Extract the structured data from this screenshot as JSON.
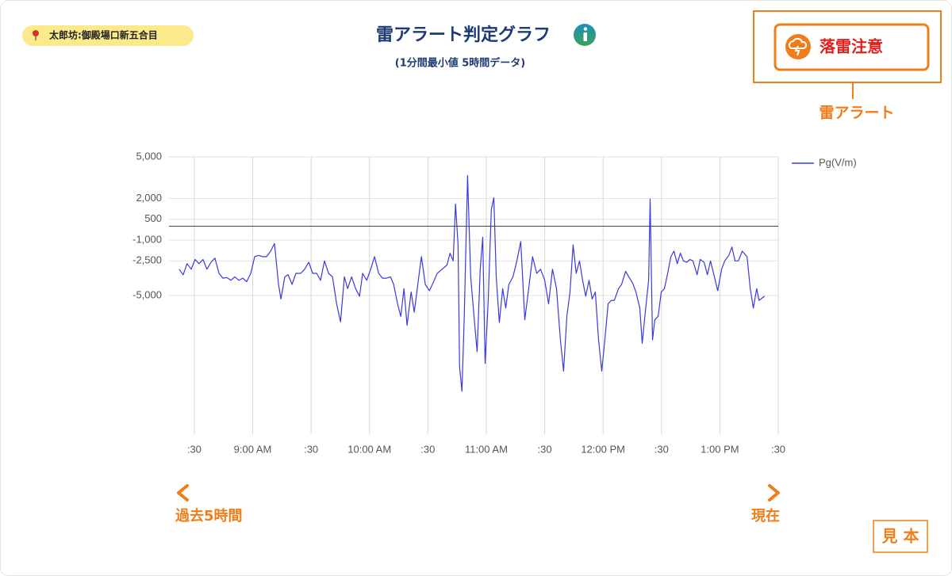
{
  "location": "太郎坊:御殿場口新五合目",
  "alert": {
    "status": "落雷注意",
    "label": "雷アラート"
  },
  "timeline": {
    "start": "過去5時間",
    "end": "現在"
  },
  "stamp": "見 本",
  "chart_data": {
    "type": "line",
    "title": "雷アラート判定グラフ",
    "subtitle": "(1分間最小値 5時間データ)",
    "x": [
      502.2,
      504.3,
      506.3,
      508.4,
      510.4,
      512.4,
      514.5,
      516.5,
      518.6,
      520.6,
      522.7,
      524.7,
      526.7,
      528.8,
      530.8,
      532.9,
      534.9,
      536.9,
      539.0,
      541.0,
      543.1,
      545.1,
      547.1,
      549.2,
      551.2,
      553.3,
      554.5,
      556.5,
      558.2,
      560.2,
      562.2,
      564.7,
      566.7,
      568.8,
      570.8,
      572.9,
      574.9,
      576.9,
      579.0,
      581.0,
      583.1,
      585.1,
      587.1,
      588.8,
      590.8,
      592.9,
      594.9,
      596.5,
      598.6,
      600.6,
      602.6,
      604.7,
      606.7,
      608.7,
      610.8,
      612.4,
      614.4,
      616.1,
      617.7,
      619.3,
      621.4,
      623.0,
      625.1,
      626.7,
      628.7,
      630.8,
      632.8,
      634.8,
      637.3,
      639.8,
      641.4,
      643.0,
      644.2,
      645.5,
      646.3,
      647.5,
      648.7,
      650.4,
      652.0,
      653.7,
      655.3,
      656.9,
      658.2,
      659.4,
      661.0,
      662.6,
      663.9,
      665.1,
      666.7,
      668.4,
      670.0,
      671.6,
      673.7,
      675.7,
      677.7,
      679.8,
      681.8,
      683.8,
      685.9,
      687.9,
      690.0,
      692.0,
      694.0,
      696.1,
      698.1,
      699.7,
      701.4,
      703.0,
      704.6,
      706.2,
      707.9,
      709.5,
      711.1,
      712.8,
      714.4,
      716.0,
      717.7,
      719.3,
      720.9,
      722.6,
      724.2,
      725.8,
      727.9,
      729.5,
      731.6,
      733.2,
      735.2,
      736.9,
      738.9,
      740.1,
      741.7,
      743.4,
      744.2,
      745.4,
      746.6,
      748.3,
      749.9,
      751.5,
      753.2,
      754.8,
      756.4,
      758.1,
      759.7,
      761.3,
      763.0,
      764.6,
      766.2,
      768.3,
      769.9,
      771.9,
      773.6,
      775.2,
      777.2,
      778.9,
      780.9,
      782.5,
      784.6,
      786.2,
      787.8,
      789.5,
      791.5,
      794.0,
      795.6,
      797.2,
      798.9,
      800.1,
      803.0
    ],
    "series": [
      {
        "name": "Pg(V/m)",
        "color": "#3a3adb",
        "values": [
          -3100,
          -3500,
          -2700,
          -3100,
          -2400,
          -2700,
          -2400,
          -3100,
          -2600,
          -2300,
          -3400,
          -3750,
          -3700,
          -3900,
          -3650,
          -3900,
          -3750,
          -4000,
          -3400,
          -2200,
          -2100,
          -2200,
          -2200,
          -1800,
          -1250,
          -4200,
          -5250,
          -3650,
          -3500,
          -4200,
          -3400,
          -3400,
          -3100,
          -2600,
          -3400,
          -3400,
          -3900,
          -2500,
          -3400,
          -3650,
          -5600,
          -6900,
          -3650,
          -4500,
          -3650,
          -4500,
          -5050,
          -3400,
          -3900,
          -3100,
          -2200,
          -3400,
          -3750,
          -3750,
          -3650,
          -4200,
          -5600,
          -6500,
          -4500,
          -7150,
          -4750,
          -6200,
          -3900,
          -2200,
          -4200,
          -4650,
          -4050,
          -3400,
          -3100,
          -2800,
          -1950,
          -2500,
          1600,
          -1350,
          -10150,
          -11900,
          -6500,
          3650,
          -3650,
          -6500,
          -9050,
          -3100,
          -800,
          -9900,
          -5350,
          1200,
          2050,
          -3650,
          -6950,
          -4500,
          -5900,
          -4200,
          -3650,
          -2500,
          -1100,
          -6750,
          -4500,
          -2200,
          -3400,
          -3100,
          -3900,
          -5600,
          -3100,
          -4500,
          -8200,
          -10450,
          -6500,
          -4750,
          -1350,
          -3400,
          -2500,
          -3900,
          -5050,
          -3900,
          -5250,
          -4750,
          -8200,
          -10450,
          -8200,
          -5600,
          -5350,
          -5350,
          -4500,
          -4200,
          -3250,
          -3650,
          -4100,
          -4750,
          -5900,
          -8450,
          -6200,
          -3900,
          1950,
          -8200,
          -6750,
          -6500,
          -4750,
          -4500,
          -3400,
          -2200,
          -1800,
          -2700,
          -1950,
          -2500,
          -2600,
          -2400,
          -2500,
          -3500,
          -2400,
          -2600,
          -3500,
          -2500,
          -3650,
          -4650,
          -3100,
          -2500,
          -2100,
          -1500,
          -2500,
          -2500,
          -1800,
          -2200,
          -4500,
          -5900,
          -4500,
          -5350,
          -5050
        ]
      }
    ],
    "xlim": [
      497,
      810
    ],
    "xticks": [
      {
        "value": 510,
        "label": ":30"
      },
      {
        "value": 540,
        "label": "9:00 AM"
      },
      {
        "value": 570,
        "label": ":30"
      },
      {
        "value": 600,
        "label": "10:00 AM"
      },
      {
        "value": 630,
        "label": ":30"
      },
      {
        "value": 660,
        "label": "11:00 AM"
      },
      {
        "value": 690,
        "label": ":30"
      },
      {
        "value": 720,
        "label": "12:00 PM"
      },
      {
        "value": 750,
        "label": ":30"
      },
      {
        "value": 780,
        "label": "1:00 PM"
      },
      {
        "value": 810,
        "label": ":30"
      }
    ],
    "ylim": [
      -15000,
      5000
    ],
    "yticks": [
      {
        "value": 5000,
        "label": "5,000"
      },
      {
        "value": 2000,
        "label": "2,000"
      },
      500,
      {
        "value": -1000,
        "label": "-1,000"
      },
      {
        "value": -2500,
        "label": "-2,500"
      },
      {
        "value": -5000,
        "label": "-5,000"
      }
    ],
    "reference_line": 0,
    "grid": true,
    "legend": "right"
  }
}
